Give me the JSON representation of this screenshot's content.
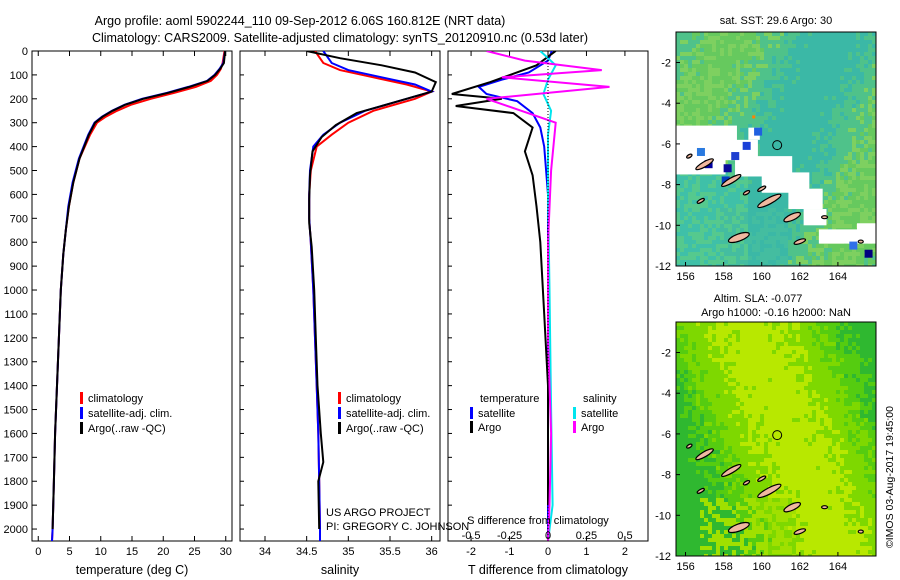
{
  "header": {
    "line1": "Argo profile: aoml 5902244_110 09-Sep-2012 6.06S 160.812E (NRT data)",
    "line2": "Climatology: CARS2009. Satellite-adjusted climatology: synTS_20120910.nc (0.53d later)"
  },
  "credit": "©IMOS 03-Aug-2017 19:45:00",
  "chart_data": [
    {
      "type": "line",
      "panel": "temperature",
      "xlabel": "temperature (deg C)",
      "xlim": [
        -1,
        31
      ],
      "ylim": [
        0,
        2050
      ],
      "y_reversed": true,
      "xticks": [
        "0",
        "5",
        "10",
        "15",
        "20",
        "25",
        "30"
      ],
      "yticks": [
        "0",
        "100",
        "200",
        "300",
        "400",
        "500",
        "600",
        "700",
        "800",
        "900",
        "1000",
        "1100",
        "1200",
        "1300",
        "1400",
        "1500",
        "1600",
        "1700",
        "1800",
        "1900",
        "2000"
      ],
      "legend": [
        "climatology",
        "satellite-adj. clim.",
        "Argo(..raw -QC)"
      ],
      "series": [
        {
          "name": "climatology",
          "color": "#ff0000",
          "x": [
            29.8,
            29.5,
            29.2,
            28.6,
            27.6,
            25.2,
            21.8,
            18.0,
            14.8,
            12.6,
            10.8,
            9.4,
            8.3,
            6.6,
            5.6,
            4.9,
            4.4,
            4.0,
            3.6,
            3.3,
            3.0,
            2.7,
            2.5,
            2.3,
            2.2
          ],
          "y": [
            0,
            50,
            75,
            100,
            125,
            150,
            175,
            200,
            225,
            250,
            275,
            300,
            350,
            450,
            550,
            650,
            750,
            850,
            1000,
            1200,
            1400,
            1600,
            1800,
            2000,
            2050
          ]
        },
        {
          "name": "satellite-adj. clim.",
          "color": "#0000ff",
          "x": [
            29.9,
            29.6,
            29.0,
            28.2,
            27.0,
            24.0,
            20.6,
            16.6,
            13.8,
            11.8,
            10.2,
            9.0,
            8.0,
            6.5,
            5.5,
            4.8,
            4.4,
            4.0,
            3.6,
            3.3,
            3.0,
            2.7,
            2.5,
            2.3,
            2.2
          ],
          "y": [
            0,
            50,
            75,
            100,
            125,
            150,
            175,
            200,
            225,
            250,
            275,
            300,
            350,
            450,
            550,
            650,
            750,
            850,
            1000,
            1200,
            1400,
            1600,
            1800,
            2000,
            2050
          ]
        },
        {
          "name": "Argo(..raw -QC)",
          "color": "#000000",
          "x": [
            29.9,
            29.7,
            29.1,
            28.3,
            27.1,
            24.2,
            20.8,
            16.8,
            13.9,
            11.9,
            10.3,
            9.1,
            8.1,
            6.6,
            5.6,
            4.9,
            4.4,
            4.0,
            3.6,
            3.3,
            3.0,
            2.7,
            2.5,
            2.3
          ],
          "y": [
            0,
            50,
            75,
            100,
            125,
            150,
            175,
            200,
            225,
            250,
            275,
            300,
            350,
            450,
            550,
            650,
            750,
            850,
            1000,
            1200,
            1400,
            1600,
            1800,
            2000
          ]
        }
      ]
    },
    {
      "type": "line",
      "panel": "salinity",
      "xlabel": "salinity",
      "xlim": [
        33.7,
        36.1
      ],
      "ylim": [
        0,
        2050
      ],
      "y_reversed": true,
      "xticks": [
        "34",
        "34.5",
        "35",
        "35.5",
        "36"
      ],
      "legend": [
        "climatology",
        "satellite-adj. clim.",
        "Argo(..raw -QC)"
      ],
      "annotation": [
        "US ARGO PROJECT",
        "PI: GREGORY C. JOHNSON"
      ],
      "series": [
        {
          "name": "climatology",
          "color": "#ff0000",
          "x": [
            34.6,
            34.7,
            34.9,
            35.3,
            35.7,
            36.0,
            35.8,
            35.3,
            35.0,
            34.8,
            34.62,
            34.55,
            34.53,
            34.53,
            34.55,
            34.58,
            34.6,
            34.62,
            34.64,
            34.65,
            34.66,
            34.66
          ],
          "y": [
            0,
            50,
            80,
            110,
            140,
            170,
            200,
            250,
            300,
            350,
            400,
            500,
            600,
            700,
            800,
            1000,
            1200,
            1400,
            1600,
            1800,
            2000,
            2050
          ]
        },
        {
          "name": "satellite-adj. clim.",
          "color": "#0000ff",
          "x": [
            34.7,
            34.8,
            35.0,
            35.4,
            35.8,
            36.0,
            35.7,
            35.2,
            34.9,
            34.7,
            34.58,
            34.54,
            34.53,
            34.53,
            34.55,
            34.58,
            34.6,
            34.62,
            34.64,
            34.65,
            34.66,
            34.66
          ],
          "y": [
            0,
            50,
            80,
            110,
            140,
            170,
            200,
            250,
            300,
            350,
            400,
            500,
            600,
            700,
            800,
            1000,
            1200,
            1400,
            1600,
            1800,
            2000,
            2050
          ]
        },
        {
          "name": "Argo(..raw -QC)",
          "color": "#000000",
          "x": [
            34.5,
            34.9,
            35.4,
            35.8,
            36.05,
            36.0,
            35.6,
            35.1,
            34.85,
            34.68,
            34.57,
            34.54,
            34.53,
            34.53,
            34.56,
            34.59,
            34.61,
            34.63,
            34.67,
            34.7,
            34.64,
            34.65
          ],
          "y": [
            0,
            30,
            60,
            90,
            130,
            170,
            210,
            260,
            310,
            360,
            420,
            520,
            620,
            720,
            820,
            1000,
            1200,
            1400,
            1600,
            1720,
            1800,
            2000
          ]
        }
      ]
    },
    {
      "type": "line",
      "panel": "difference",
      "xlabel": "T difference from climatology",
      "xlabel2": "S difference from climatology",
      "xlim": [
        -2.6,
        2.6
      ],
      "ylim": [
        0,
        2050
      ],
      "y_reversed": true,
      "xticks": [
        "-2",
        "-1",
        "0",
        "1",
        "2"
      ],
      "xticks_top": [
        "-0.5",
        "-0.25",
        "0",
        "0.25",
        "0.5"
      ],
      "legend_titles": [
        "temperature",
        "salinity"
      ],
      "legend": [
        "satellite",
        "Argo",
        "satellite",
        "Argo"
      ],
      "series": [
        {
          "name": "temperature satellite",
          "color": "#0000ff",
          "x": [
            0.1,
            0.0,
            -0.5,
            -1.2,
            -1.8,
            -1.6,
            -0.8,
            -0.4,
            -0.2,
            -0.1,
            0.0,
            0.0,
            0.0,
            0.0,
            0.0
          ],
          "y": [
            0,
            40,
            90,
            120,
            150,
            180,
            210,
            260,
            320,
            400,
            600,
            900,
            1300,
            1700,
            2050
          ]
        },
        {
          "name": "temperature Argo",
          "color": "#000000",
          "x": [
            0.2,
            -0.3,
            -1.5,
            -2.5,
            -1.2,
            -2.4,
            -0.9,
            -0.4,
            -0.6,
            -0.4,
            -0.3,
            -0.2,
            -0.1,
            0.0,
            0.0
          ],
          "y": [
            0,
            60,
            130,
            180,
            200,
            230,
            260,
            320,
            420,
            520,
            650,
            800,
            1100,
            1400,
            1900
          ]
        },
        {
          "name": "salinity satellite",
          "color": "#00e5ee",
          "x": [
            -0.05,
            0.05,
            0.0,
            -0.03,
            0.02,
            0.0,
            0.0,
            0.01,
            0.02,
            0.03,
            0.0
          ],
          "y": [
            0,
            60,
            120,
            180,
            250,
            350,
            600,
            1000,
            1500,
            1900,
            2050
          ]
        },
        {
          "name": "salinity Argo",
          "color": "#ff00ff",
          "x": [
            -0.4,
            -0.15,
            0.35,
            -0.3,
            0.4,
            -0.4,
            0.05,
            0.02,
            0.0,
            0.0,
            0.02,
            0.01,
            0.0
          ],
          "y": [
            0,
            40,
            80,
            110,
            150,
            200,
            300,
            500,
            800,
            1200,
            1600,
            1900,
            2050
          ]
        }
      ]
    },
    {
      "type": "heatmap",
      "panel": "sst-map",
      "title": "sat. SST: 29.6 Argo: 30",
      "xlim": [
        155.5,
        166
      ],
      "ylim": [
        -12,
        -0.5
      ],
      "xticks": [
        "156",
        "158",
        "160",
        "162",
        "164"
      ],
      "yticks": [
        "-2",
        "-4",
        "-6",
        "-8",
        "-10",
        "-12"
      ],
      "argo_position": [
        160.812,
        -6.06
      ]
    },
    {
      "type": "heatmap",
      "panel": "sla-map",
      "title": "Altim. SLA: -0.077",
      "subtitle": "Argo h1000: -0.16 h2000: NaN",
      "xlim": [
        155.5,
        166
      ],
      "ylim": [
        -12,
        -0.5
      ],
      "xticks": [
        "156",
        "158",
        "160",
        "162",
        "164"
      ],
      "yticks": [
        "-2",
        "-4",
        "-6",
        "-8",
        "-10",
        "-12"
      ],
      "argo_position": [
        160.812,
        -6.06
      ]
    }
  ]
}
